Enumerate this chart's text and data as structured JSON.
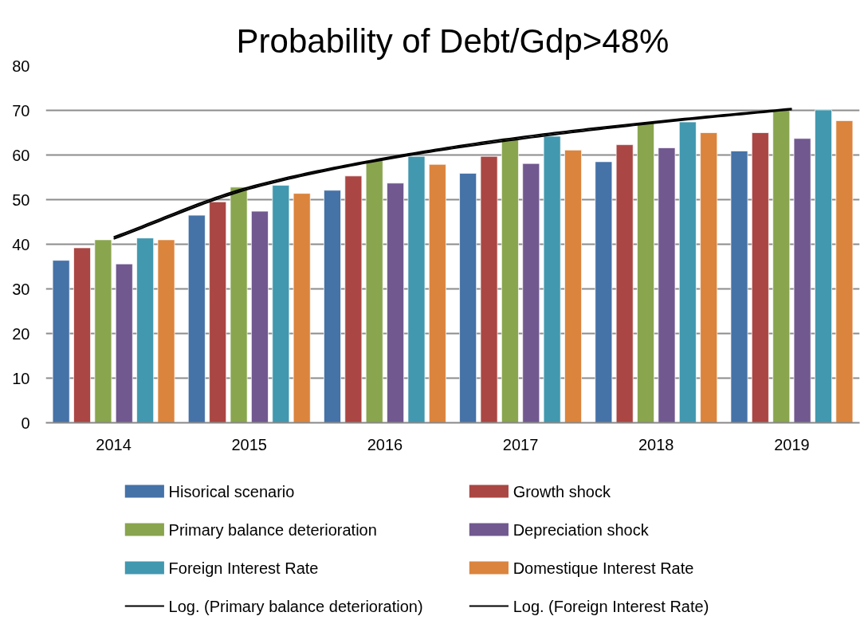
{
  "chart_data": {
    "type": "bar",
    "title": "Probability of Debt/Gdp>48%",
    "categories": [
      "2014",
      "2015",
      "2016",
      "2017",
      "2018",
      "2019"
    ],
    "series": [
      {
        "name": "Hisorical scenario",
        "color": "#4572a7",
        "values": [
          36.4,
          46.5,
          52.1,
          55.9,
          58.5,
          60.9
        ]
      },
      {
        "name": "Growth shock",
        "color": "#aa4643",
        "values": [
          39.2,
          49.5,
          55.3,
          59.7,
          62.3,
          65.0
        ]
      },
      {
        "name": "Primary balance deterioration",
        "color": "#89a54e",
        "values": [
          41.0,
          52.8,
          58.8,
          63.7,
          67.2,
          70.0
        ]
      },
      {
        "name": "Depreciation shock",
        "color": "#71588f",
        "values": [
          35.6,
          47.4,
          53.7,
          58.1,
          61.6,
          63.7
        ]
      },
      {
        "name": "Foreign Interest Rate",
        "color": "#4198af",
        "values": [
          41.4,
          53.2,
          59.7,
          64.2,
          67.4,
          70.1
        ]
      },
      {
        "name": "Domestique Interest Rate",
        "color": "#db843d",
        "values": [
          41.0,
          51.4,
          57.9,
          61.1,
          65.0,
          67.7
        ]
      },
      {
        "name": "Log. (Primary balance deterioration)",
        "type": "line",
        "color": "#000000",
        "values": [
          41.2,
          52.4,
          59.0,
          63.6,
          67.2,
          70.2
        ]
      },
      {
        "name": "Log. (Foreign Interest Rate)",
        "type": "line",
        "color": "#000000",
        "values": [
          41.6,
          52.8,
          59.3,
          64.0,
          67.5,
          70.4
        ]
      }
    ],
    "ylim": [
      0,
      80
    ],
    "yticks": [
      0,
      10,
      20,
      30,
      40,
      50,
      60,
      70,
      80
    ],
    "grid": "y",
    "legend": "bottom"
  }
}
